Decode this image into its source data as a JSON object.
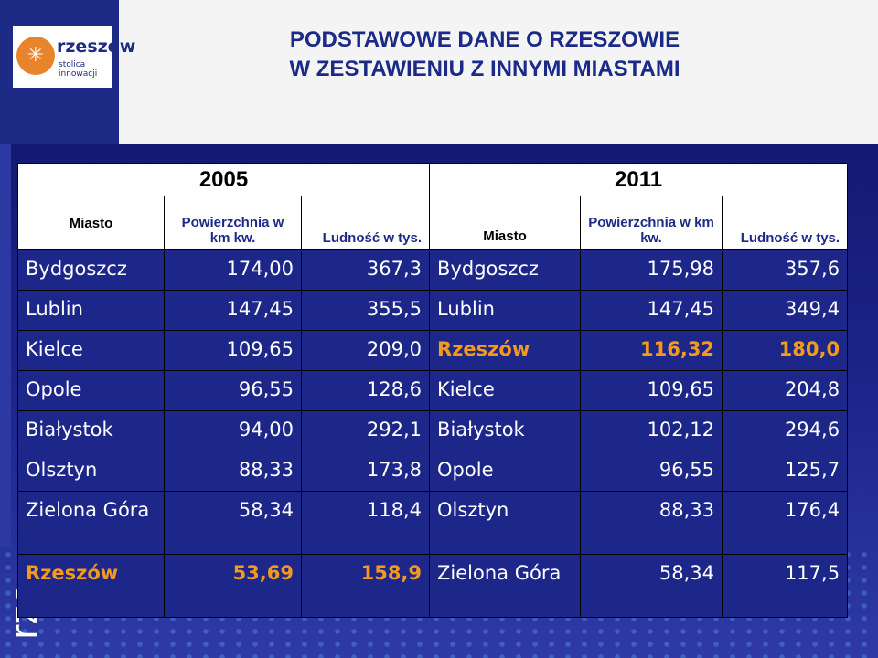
{
  "slide": {
    "title_line1": "PODSTAWOWE DANE O RZESZOWIE",
    "title_line2": "W ZESTAWIENIU Z INNYMI MIASTAMI",
    "logo_name": "rzeszów",
    "logo_tagline": "stolica innowacji",
    "side_text": "rze"
  },
  "table": {
    "year_left": "2005",
    "year_right": "2011",
    "headers_left": {
      "city": "Miasto",
      "area": "Powierzchnia w km kw.",
      "population": "Ludność w tys."
    },
    "headers_right": {
      "city": "Miasto",
      "area": "Powierzchnia w km kw.",
      "population": "Ludność w tys."
    },
    "rows": [
      {
        "c1": "Bydgoszcz",
        "a1": "174,00",
        "p1": "367,3",
        "c2": "Bydgoszcz",
        "a2": "175,98",
        "p2": "357,6"
      },
      {
        "c1": "Lublin",
        "a1": "147,45",
        "p1": "355,5",
        "c2": "Lublin",
        "a2": "147,45",
        "p2": "349,4"
      },
      {
        "c1": "Kielce",
        "a1": "109,65",
        "p1": "209,0",
        "c2": "Rzeszów",
        "a2": "116,32",
        "p2": "180,0"
      },
      {
        "c1": "Opole",
        "a1": "96,55",
        "p1": "128,6",
        "c2": "Kielce",
        "a2": "109,65",
        "p2": "204,8"
      },
      {
        "c1": "Białystok",
        "a1": "94,00",
        "p1": "292,1",
        "c2": "Białystok",
        "a2": "102,12",
        "p2": "294,6"
      },
      {
        "c1": "Olsztyn",
        "a1": "88,33",
        "p1": "173,8",
        "c2": "Opole",
        "a2": "96,55",
        "p2": "125,7"
      },
      {
        "c1": "Zielona Góra",
        "a1": "58,34",
        "p1": "118,4",
        "c2": "Olsztyn",
        "a2": "88,33",
        "p2": "176,4"
      },
      {
        "c1": "Rzeszów",
        "a1": "53,69",
        "p1": "158,9",
        "c2": "Zielona Góra",
        "a2": "58,34",
        "p2": "117,5"
      }
    ],
    "highlight_color": "#f39a1e"
  }
}
